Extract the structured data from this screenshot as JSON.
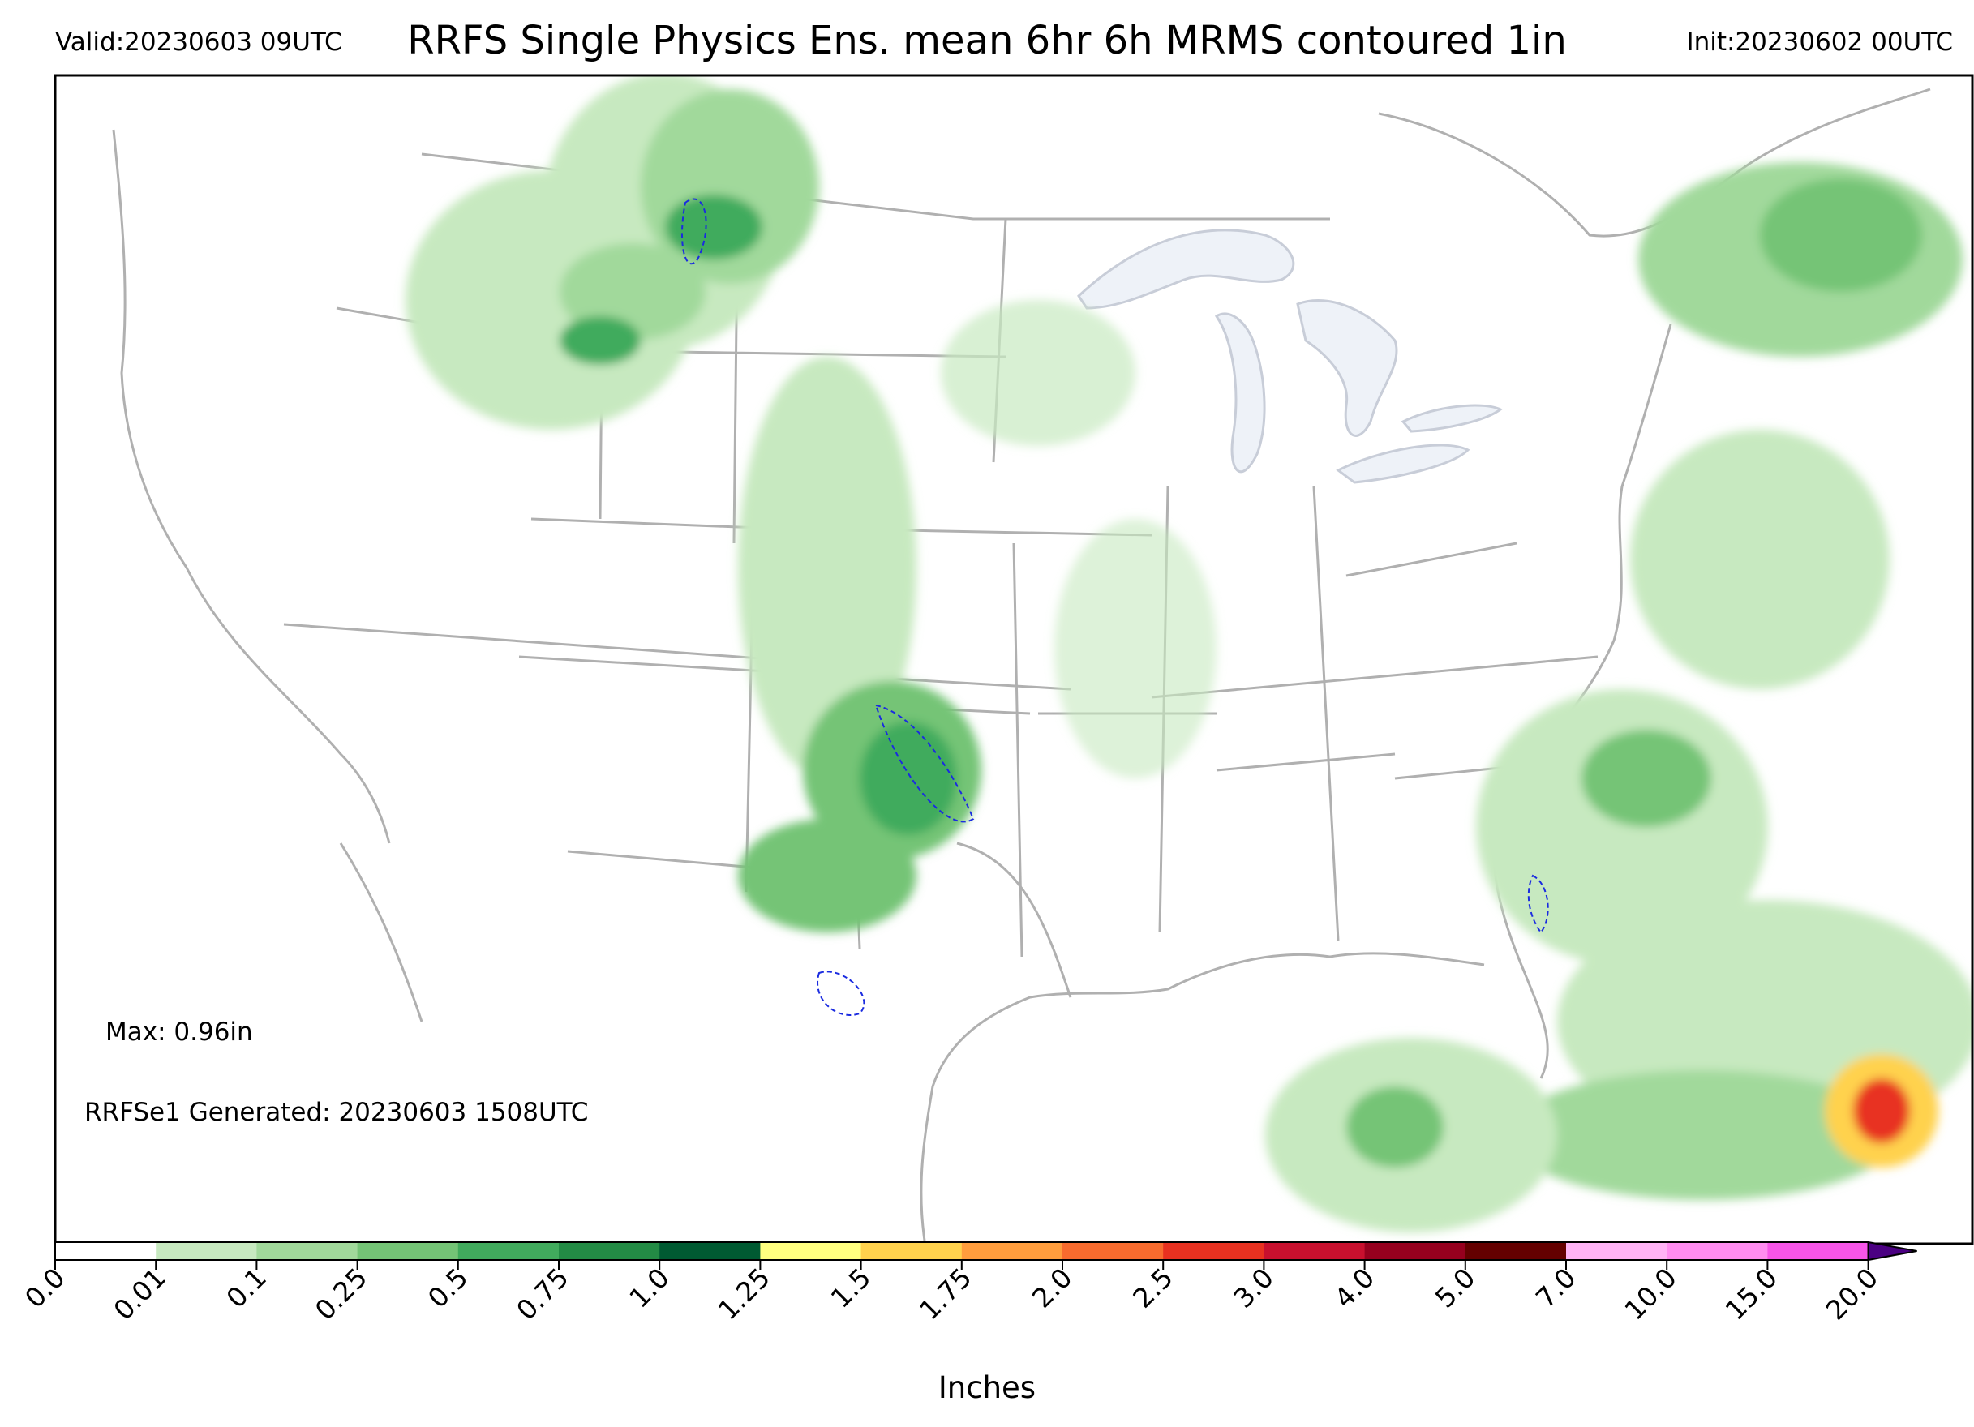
{
  "header": {
    "valid": "Valid:20230603 09UTC",
    "title": "RRFS Single Physics Ens. mean 6hr 6h MRMS contoured 1in",
    "init": "Init:20230602 00UTC"
  },
  "annotations": {
    "max": "Max: 0.96in",
    "generated": "RRFSe1 Generated: 20230603 1508UTC"
  },
  "colorbar": {
    "label": "Inches",
    "ticks": [
      "0.0",
      "0.01",
      "0.1",
      "0.25",
      "0.5",
      "0.75",
      "1.0",
      "1.25",
      "1.5",
      "1.75",
      "2.0",
      "2.5",
      "3.0",
      "4.0",
      "5.0",
      "7.0",
      "10.0",
      "15.0",
      "20.0"
    ],
    "colors": [
      "#ffffff",
      "#c7e9c0",
      "#a1d99b",
      "#74c476",
      "#41ab5d",
      "#238b45",
      "#005a32",
      "#ffff80",
      "#ffd24d",
      "#ff9d3d",
      "#f86b2e",
      "#e83120",
      "#c8102e",
      "#96001e",
      "#640000",
      "#ffb3f5",
      "#ff8cf0",
      "#f755e8",
      "#e41de0",
      "#a50cd8",
      "#7a00b5"
    ],
    "extend_color": "#4b0082"
  },
  "map_colors": {
    "borders": "#b0b0b0",
    "lakes": "#eef2f8",
    "mrms_contour": "#1a2be0"
  }
}
